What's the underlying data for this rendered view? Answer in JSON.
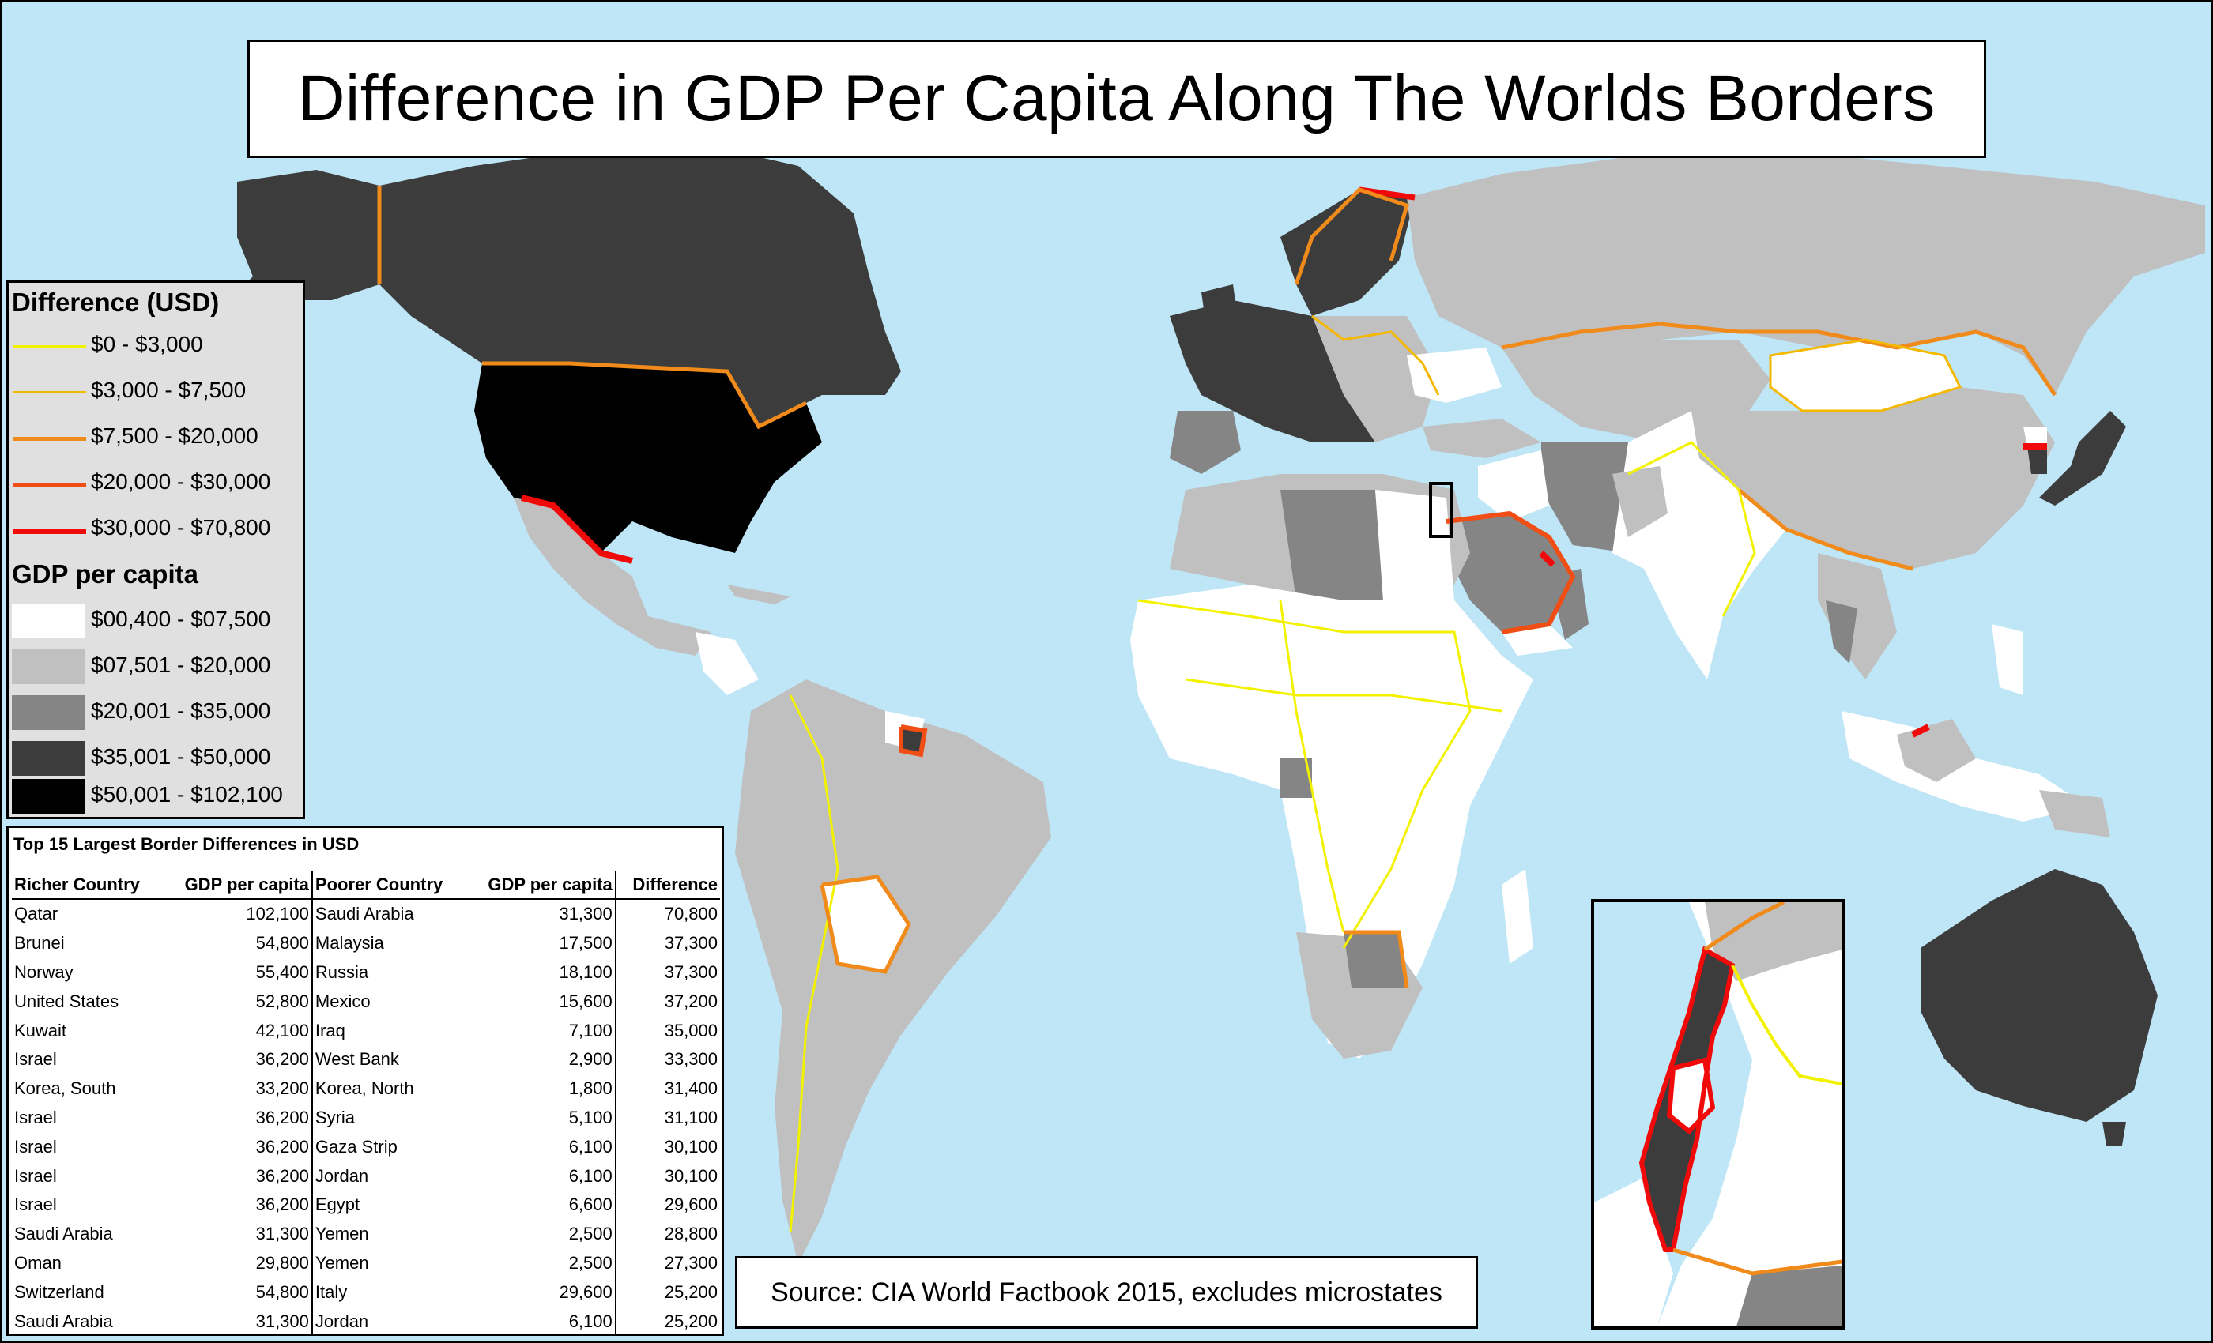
{
  "title": "Difference in GDP Per Capita Along The Worlds Borders",
  "legend": {
    "difference_heading": "Difference (USD)",
    "difference_classes": [
      {
        "label": "$0 - $3,000",
        "color": "#f2f200"
      },
      {
        "label": "$3,000 - $7,500",
        "color": "#f5b800"
      },
      {
        "label": "$7,500 - $20,000",
        "color": "#f08a1a"
      },
      {
        "label": "$20,000 - $30,000",
        "color": "#f04e14"
      },
      {
        "label": "$30,000 - $70,800",
        "color": "#f00a0a"
      }
    ],
    "gdp_heading": "GDP per capita",
    "gdp_classes": [
      {
        "label": "$00,400 - $07,500",
        "color": "#ffffff"
      },
      {
        "label": "$07,501 - $20,000",
        "color": "#c0c0c0"
      },
      {
        "label": "$20,001 - $35,000",
        "color": "#858585"
      },
      {
        "label": "$35,001 - $50,000",
        "color": "#3c3c3c"
      },
      {
        "label": "$50,001 - $102,100",
        "color": "#000000"
      }
    ]
  },
  "table": {
    "caption": "Top 15 Largest Border Differences in USD",
    "headers": [
      "Richer Country",
      "GDP per capita",
      "Poorer Country",
      "GDP per capita",
      "Difference"
    ],
    "rows": [
      [
        "Qatar",
        "102,100",
        "Saudi Arabia",
        "31,300",
        "70,800"
      ],
      [
        "Brunei",
        "54,800",
        "Malaysia",
        "17,500",
        "37,300"
      ],
      [
        "Norway",
        "55,400",
        "Russia",
        "18,100",
        "37,300"
      ],
      [
        "United States",
        "52,800",
        "Mexico",
        "15,600",
        "37,200"
      ],
      [
        "Kuwait",
        "42,100",
        "Iraq",
        "7,100",
        "35,000"
      ],
      [
        "Israel",
        "36,200",
        "West Bank",
        "2,900",
        "33,300"
      ],
      [
        "Korea, South",
        "33,200",
        "Korea, North",
        "1,800",
        "31,400"
      ],
      [
        "Israel",
        "36,200",
        "Syria",
        "5,100",
        "31,100"
      ],
      [
        "Israel",
        "36,200",
        "Gaza Strip",
        "6,100",
        "30,100"
      ],
      [
        "Israel",
        "36,200",
        "Jordan",
        "6,100",
        "30,100"
      ],
      [
        "Israel",
        "36,200",
        "Egypt",
        "6,600",
        "29,600"
      ],
      [
        "Saudi Arabia",
        "31,300",
        "Yemen",
        "2,500",
        "28,800"
      ],
      [
        "Oman",
        "29,800",
        "Yemen",
        "2,500",
        "27,300"
      ],
      [
        "Switzerland",
        "54,800",
        "Italy",
        "29,600",
        "25,200"
      ],
      [
        "Saudi Arabia",
        "31,300",
        "Jordan",
        "6,100",
        "25,200"
      ]
    ]
  },
  "source": "Source: CIA World Factbook 2015, excludes microstates",
  "colors": {
    "ocean": "#bfe6f7",
    "white_class": "#ffffff",
    "light_gray_class": "#c0c0c0",
    "mid_gray_class": "#858585",
    "dark_gray_class": "#3c3c3c",
    "black_class": "#000000",
    "yellow_border": "#f2f200",
    "amber_border": "#f5b800",
    "orange_border": "#f08a1a",
    "red_orange_border": "#f04e14",
    "red_border": "#f00a0a"
  }
}
